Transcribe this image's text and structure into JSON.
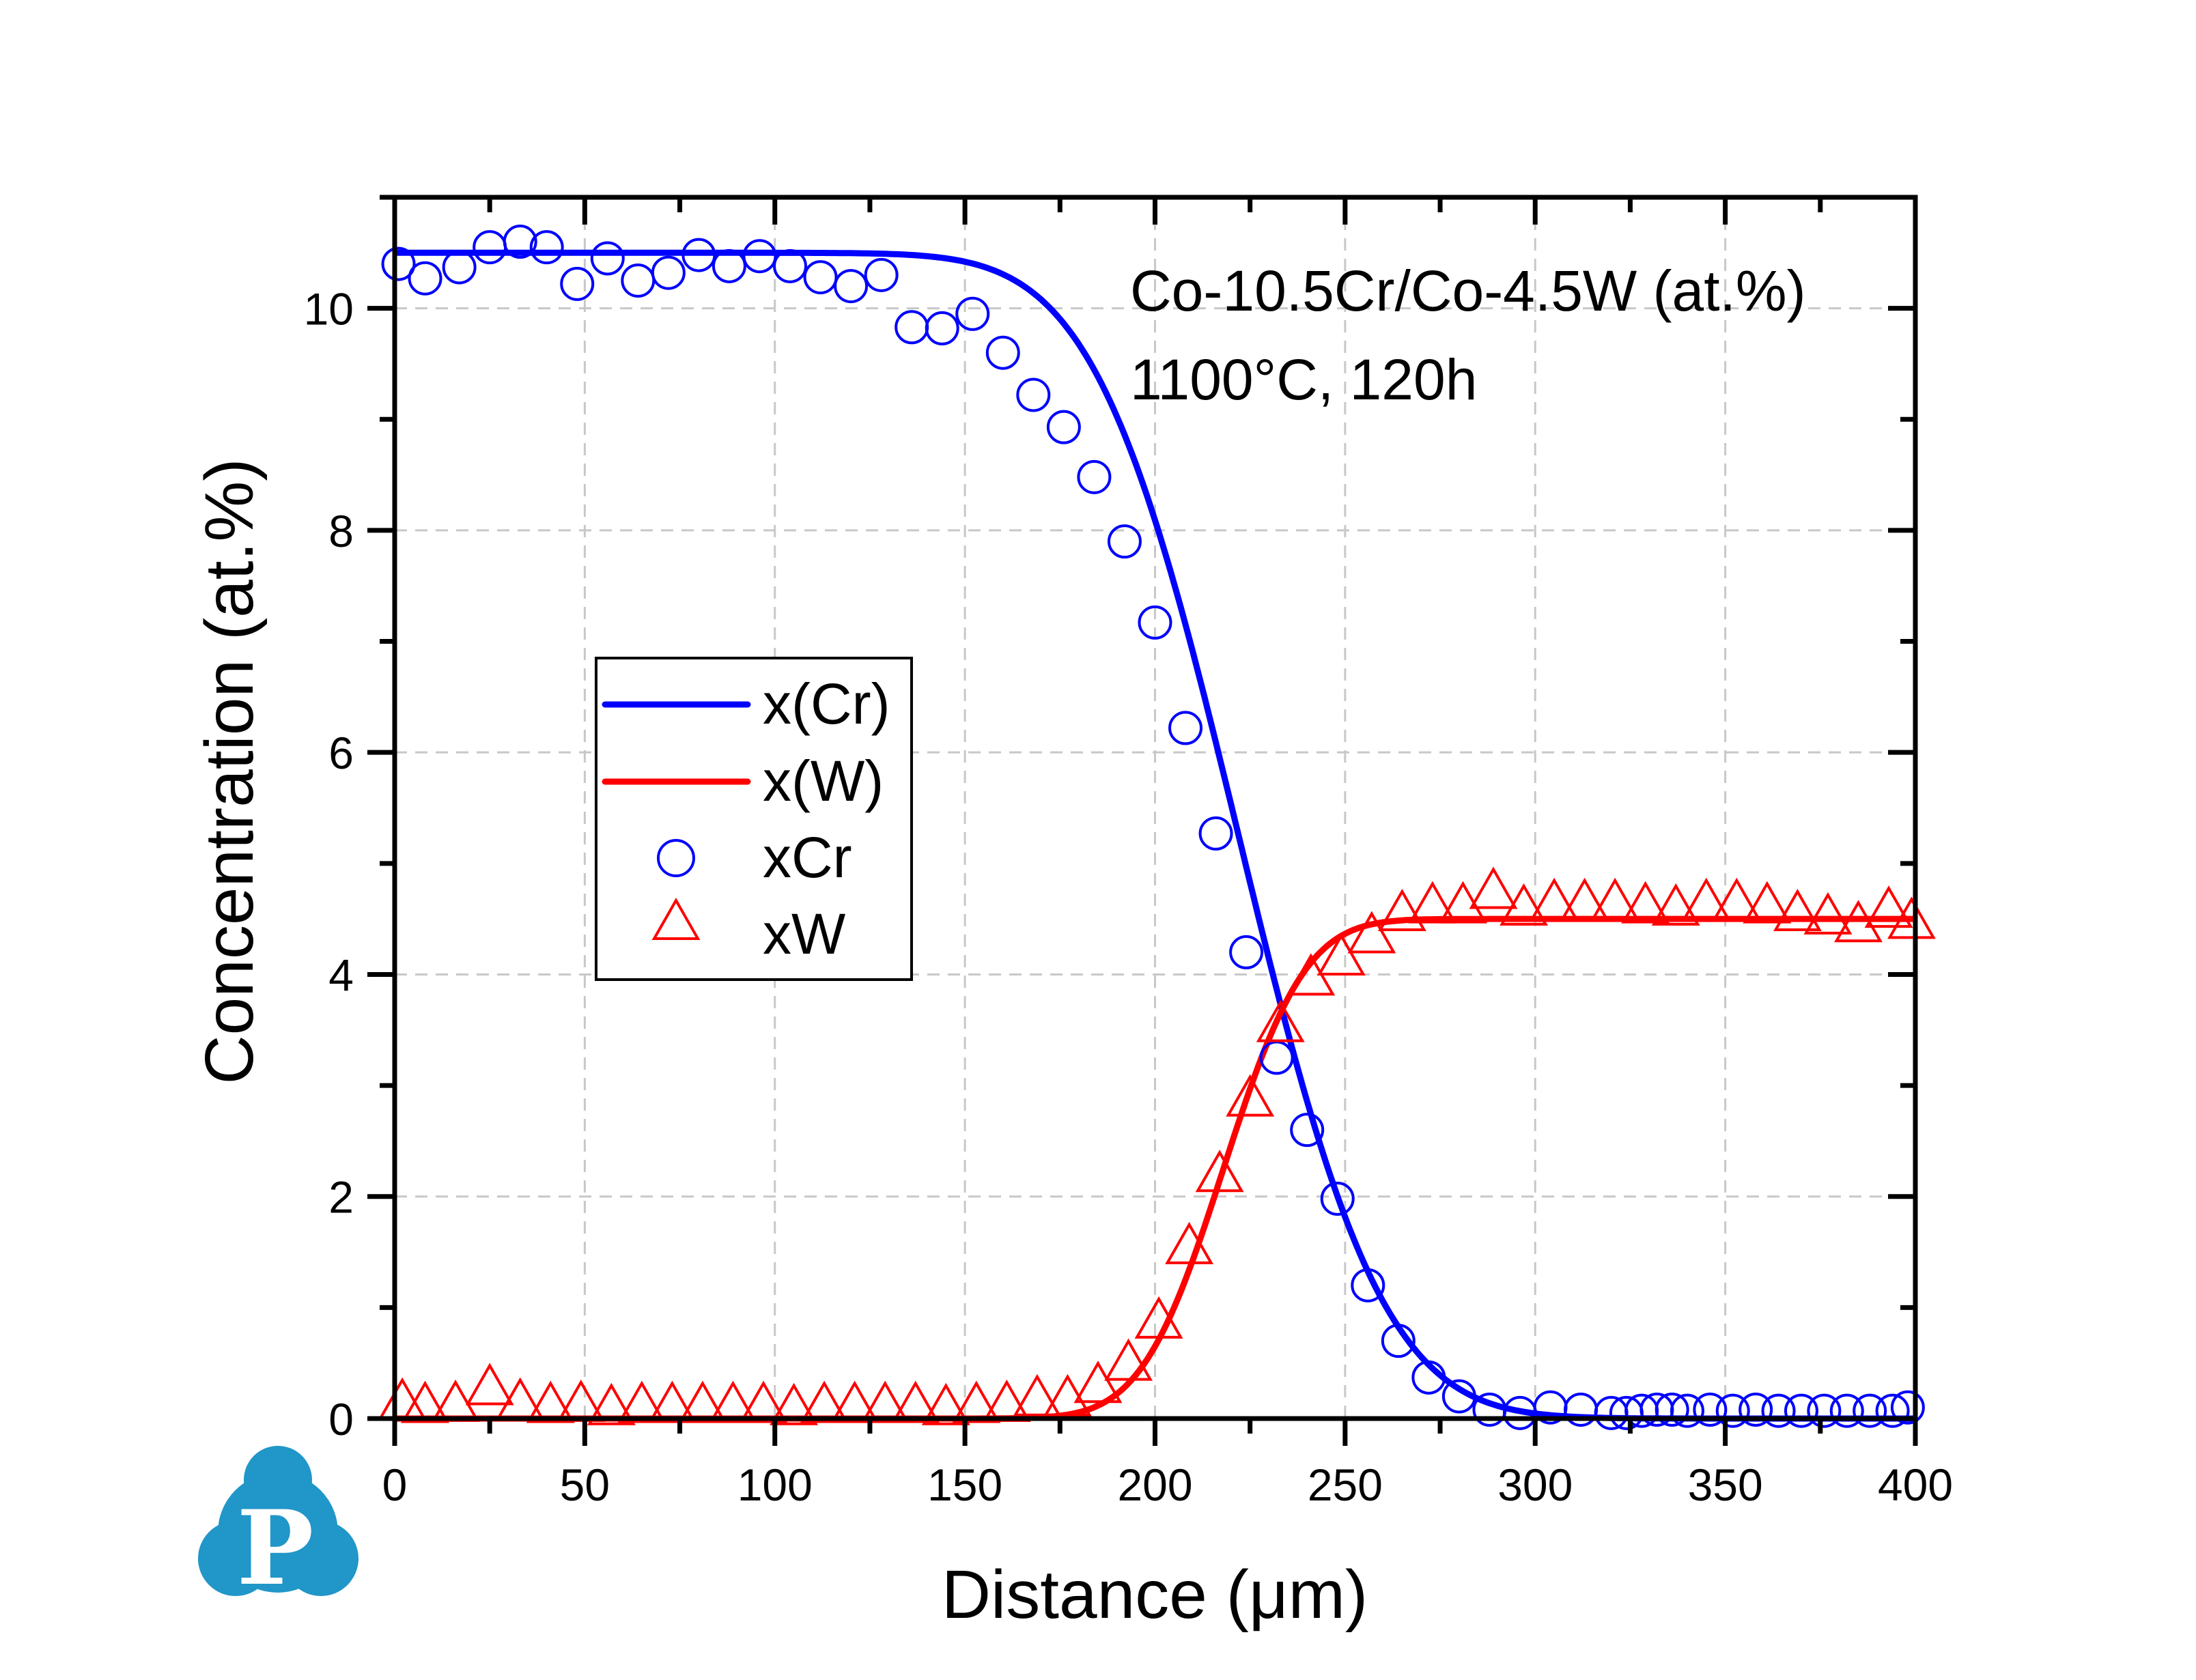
{
  "chart_data": {
    "type": "scatter",
    "title": "",
    "xlabel": "Distance (μm)",
    "ylabel": "Concentration (at.%)",
    "xlim": [
      0,
      400
    ],
    "ylim": [
      0,
      11
    ],
    "xticks": [
      0,
      50,
      100,
      150,
      200,
      250,
      300,
      350,
      400
    ],
    "xtick_labels": [
      "0",
      "50",
      "100",
      "150",
      "200",
      "250",
      "300",
      "350",
      "400"
    ],
    "yticks": [
      0,
      2,
      4,
      6,
      8,
      10
    ],
    "ytick_labels": [
      "0",
      "2",
      "4",
      "6",
      "8",
      "10"
    ],
    "grid": true,
    "legend_position": "center-left",
    "annotations": [
      "Co-10.5Cr/Co-4.5W (at.%)",
      "1100°C, 120h"
    ],
    "series": [
      {
        "name": "x(Cr)",
        "kind": "line",
        "color": "#0000ff",
        "model": {
          "function": "erfc",
          "plateau": 10.5,
          "center": 222,
          "width": 42,
          "direction": "decreasing"
        }
      },
      {
        "name": "x(W)",
        "kind": "line",
        "color": "#ff0000",
        "model": {
          "function": "erfc",
          "plateau": 4.5,
          "center": 218,
          "width": 24,
          "direction": "increasing"
        }
      },
      {
        "name": "xCr",
        "kind": "scatter",
        "marker": "circle",
        "color": "#0000ff",
        "x": [
          1,
          8,
          17,
          25,
          33,
          40,
          48,
          56,
          64,
          72,
          80,
          88,
          96,
          104,
          112,
          120,
          128,
          136,
          144,
          152,
          160,
          168,
          176,
          184,
          192,
          200,
          208,
          216,
          224,
          232,
          240,
          248,
          256,
          264,
          272,
          280,
          288,
          296,
          304,
          312,
          320,
          324,
          328,
          332,
          336,
          340,
          346,
          352,
          358,
          364,
          370,
          376,
          382,
          388,
          394,
          398
        ],
        "y": [
          10.4,
          10.27,
          10.37,
          10.55,
          10.6,
          10.55,
          10.22,
          10.45,
          10.25,
          10.32,
          10.48,
          10.38,
          10.47,
          10.38,
          10.28,
          10.2,
          10.3,
          9.83,
          9.82,
          9.95,
          9.6,
          9.22,
          8.93,
          8.48,
          7.9,
          7.17,
          6.22,
          5.27,
          4.2,
          3.25,
          2.6,
          1.98,
          1.2,
          0.7,
          0.37,
          0.2,
          0.08,
          0.05,
          0.1,
          0.08,
          0.05,
          0.05,
          0.07,
          0.08,
          0.08,
          0.07,
          0.08,
          0.07,
          0.08,
          0.07,
          0.07,
          0.07,
          0.07,
          0.07,
          0.07,
          0.1
        ]
      },
      {
        "name": "xW",
        "kind": "scatter",
        "marker": "triangle",
        "color": "#ff0000",
        "x": [
          2,
          8,
          16,
          25,
          33,
          41,
          49,
          57,
          65,
          73,
          81,
          89,
          97,
          105,
          113,
          121,
          129,
          137,
          145,
          153,
          161,
          169,
          177,
          185,
          193,
          201,
          209,
          217,
          225,
          233,
          241,
          249,
          257,
          265,
          273,
          281,
          289,
          297,
          305,
          313,
          321,
          329,
          337,
          345,
          353,
          361,
          369,
          377,
          385,
          393,
          399
        ],
        "y": [
          0.15,
          0.12,
          0.13,
          0.28,
          0.15,
          0.12,
          0.13,
          0.1,
          0.12,
          0.12,
          0.12,
          0.12,
          0.12,
          0.1,
          0.12,
          0.12,
          0.12,
          0.12,
          0.1,
          0.12,
          0.13,
          0.18,
          0.18,
          0.3,
          0.5,
          0.88,
          1.55,
          2.2,
          2.88,
          3.55,
          3.97,
          4.15,
          4.35,
          4.55,
          4.62,
          4.62,
          4.75,
          4.6,
          4.65,
          4.65,
          4.65,
          4.62,
          4.6,
          4.65,
          4.65,
          4.62,
          4.55,
          4.52,
          4.45,
          4.58,
          4.48
        ]
      }
    ]
  },
  "logo": {
    "letter": "P",
    "color": "#2196c8"
  }
}
